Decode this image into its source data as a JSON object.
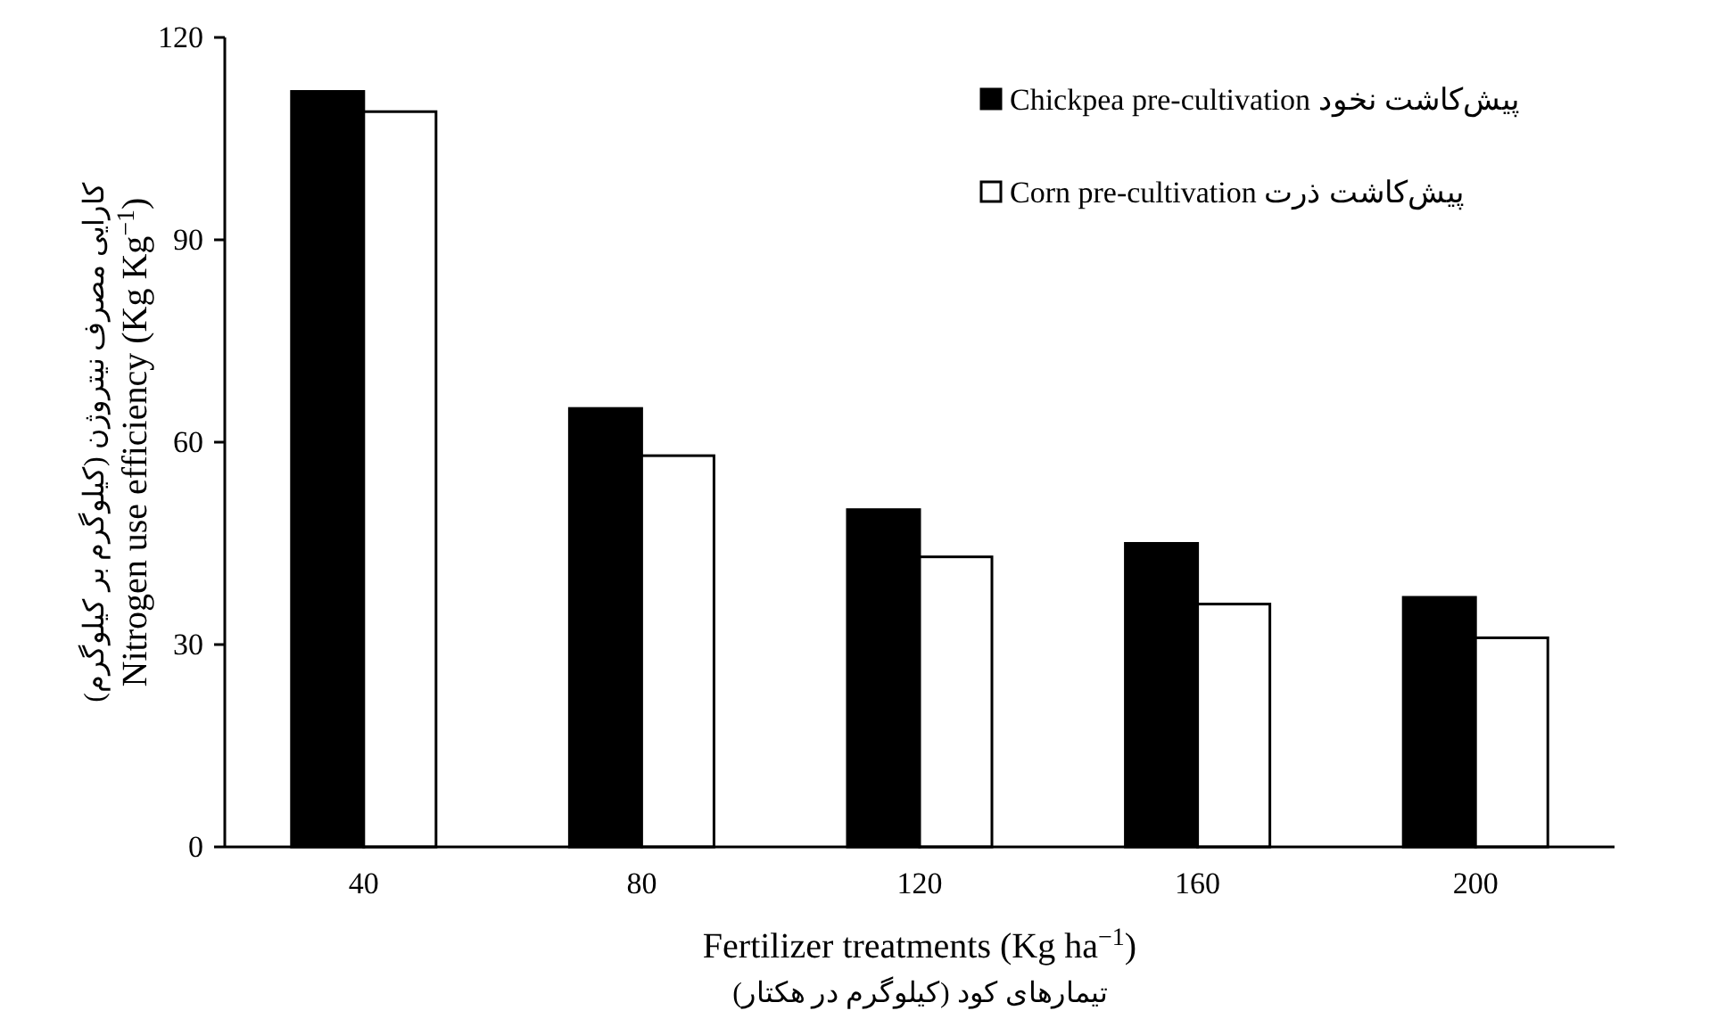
{
  "chart_data": {
    "type": "bar",
    "categories": [
      "40",
      "80",
      "120",
      "160",
      "200"
    ],
    "xlabel": "Fertilizer treatments (Kg ha$^{−1}$)\nتیمارهای کود (کیلوگرم در هکتار)",
    "ylabel": "کارایی مصرف نیتروژن (کیلوگرم بر کیلوگرم)\nNitrogen use efficiency (Kg Kg$^{−1}$)",
    "series": [
      {
        "name": "Chickpea pre-cultivation   پیش‌کاشت نخود",
        "color": "#000000",
        "values": [
          112,
          65,
          50,
          45,
          37
        ]
      },
      {
        "name": "Corn pre-cultivation   پیش‌کاشت ذرت",
        "color": "#ffffff",
        "values": [
          109,
          58,
          43,
          36,
          31
        ]
      }
    ],
    "ylim": [
      0,
      120
    ],
    "yticks": [
      0,
      30,
      60,
      90,
      120
    ],
    "grid": false,
    "legend": "top right"
  }
}
